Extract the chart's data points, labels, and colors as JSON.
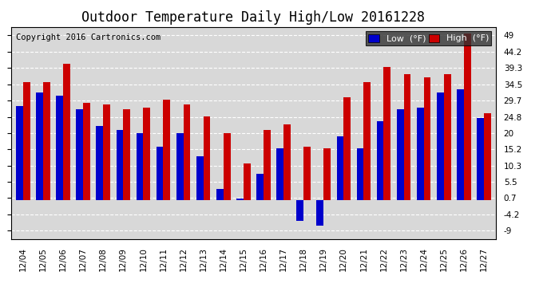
{
  "title": "Outdoor Temperature Daily High/Low 20161228",
  "copyright": "Copyright 2016 Cartronics.com",
  "dates": [
    "12/04",
    "12/05",
    "12/06",
    "12/07",
    "12/08",
    "12/09",
    "12/10",
    "12/11",
    "12/12",
    "12/13",
    "12/14",
    "12/15",
    "12/16",
    "12/17",
    "12/18",
    "12/19",
    "12/20",
    "12/21",
    "12/22",
    "12/23",
    "12/24",
    "12/25",
    "12/26",
    "12/27"
  ],
  "low": [
    28.0,
    32.0,
    31.0,
    27.0,
    22.0,
    21.0,
    20.0,
    16.0,
    20.0,
    13.0,
    3.5,
    0.5,
    8.0,
    15.5,
    -6.0,
    -7.5,
    19.0,
    15.5,
    23.5,
    27.0,
    27.5,
    32.0,
    33.0,
    24.5
  ],
  "high": [
    35.0,
    35.0,
    40.5,
    29.0,
    28.5,
    27.0,
    27.5,
    30.0,
    28.5,
    25.0,
    20.0,
    11.0,
    21.0,
    22.5,
    16.0,
    15.5,
    30.5,
    35.0,
    39.5,
    37.5,
    36.5,
    37.5,
    49.5,
    26.0
  ],
  "low_color": "#0000cc",
  "high_color": "#cc0000",
  "bg_color": "#ffffff",
  "plot_bg_color": "#d8d8d8",
  "grid_color": "#ffffff",
  "yticks": [
    -9.0,
    -4.2,
    0.7,
    5.5,
    10.3,
    15.2,
    20.0,
    24.8,
    29.7,
    34.5,
    39.3,
    44.2,
    49.0
  ],
  "ylim": [
    -11.5,
    51.5
  ],
  "title_fontsize": 12,
  "legend_fontsize": 8,
  "tick_fontsize": 7.5,
  "copyright_fontsize": 7.5,
  "bar_width": 0.35
}
